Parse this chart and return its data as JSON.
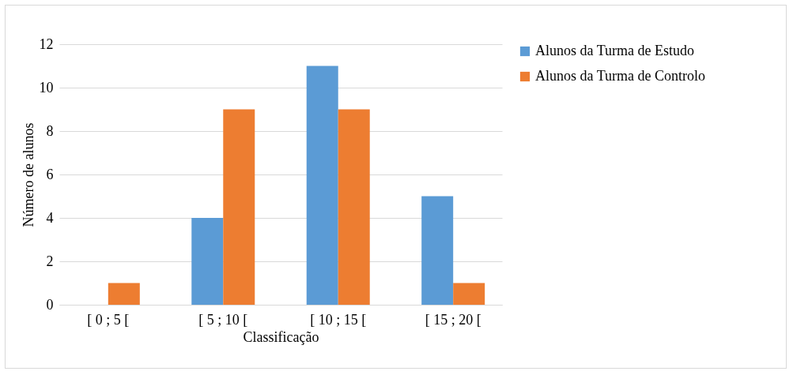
{
  "chart_data": {
    "type": "bar",
    "xlabel": "Classificação",
    "ylabel": "Número de alunos",
    "categories": [
      "[ 0 ; 5 [",
      "[ 5 ; 10 [",
      "[ 10 ; 15 [",
      "[ 15 ; 20 ["
    ],
    "series": [
      {
        "name": "Alunos da Turma de Estudo",
        "color": "#5b9bd5",
        "values": [
          0,
          4,
          11,
          5
        ]
      },
      {
        "name": "Alunos da Turma de Controlo",
        "color": "#ed7d31",
        "values": [
          1,
          9,
          9,
          1
        ]
      }
    ],
    "ylim": [
      0,
      12
    ],
    "yticks": [
      0,
      2,
      4,
      6,
      8,
      10,
      12
    ],
    "grid": "y",
    "legend": "right"
  }
}
